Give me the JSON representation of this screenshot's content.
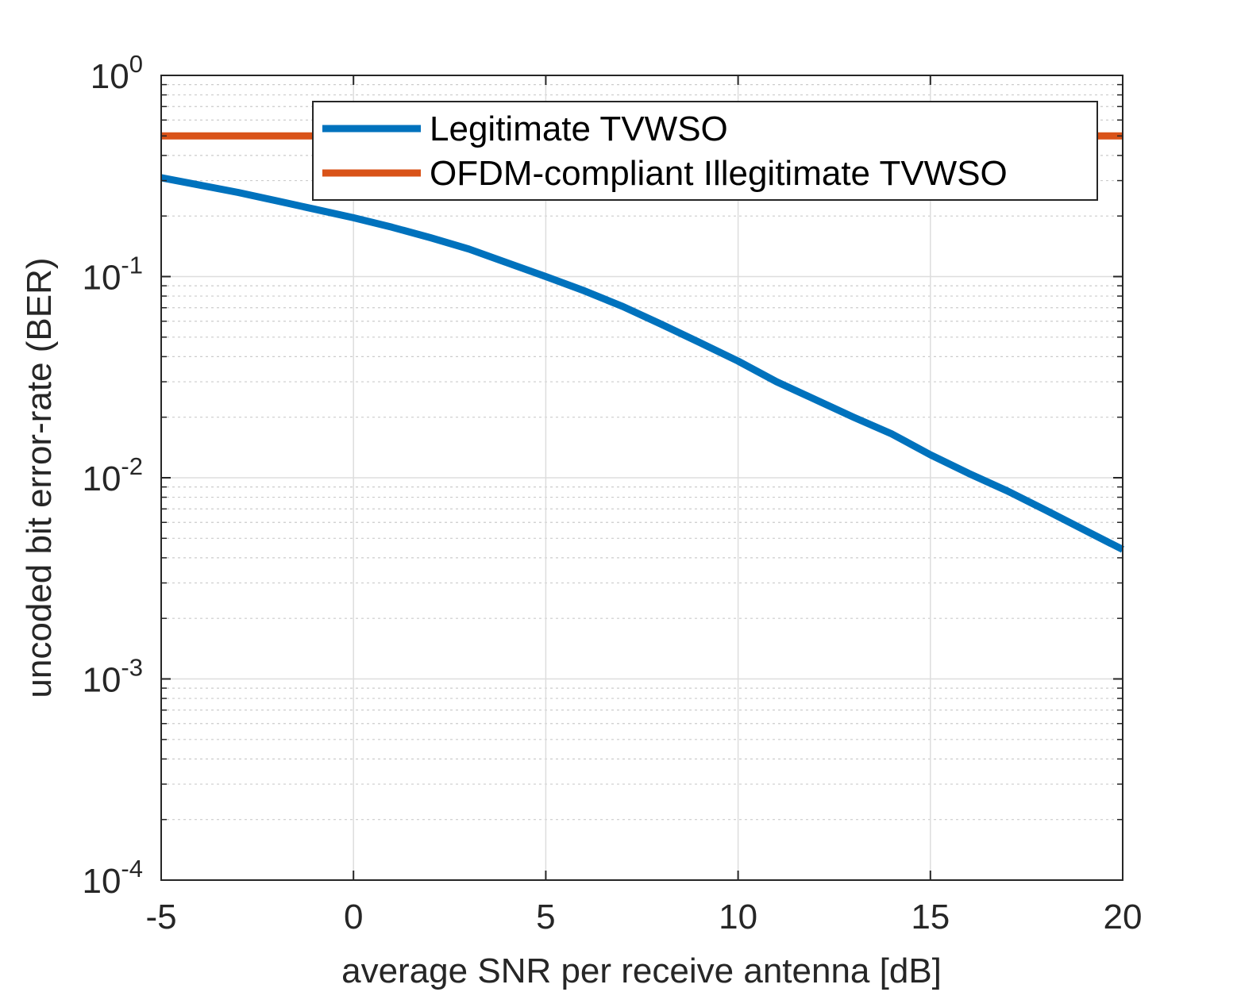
{
  "chart_data": {
    "type": "line",
    "title": "",
    "xlabel": "average SNR per receive antenna [dB]",
    "ylabel": "uncoded bit error-rate (BER)",
    "xlim": [
      -5,
      20
    ],
    "ylim": [
      0.0001,
      1
    ],
    "yscale": "log",
    "grid": true,
    "legend_position": "top-right",
    "x_ticks": [
      -5,
      0,
      5,
      10,
      15,
      20
    ],
    "x_tick_labels": [
      "-5",
      "0",
      "5",
      "10",
      "15",
      "20"
    ],
    "y_ticks": [
      0,
      -1,
      -2,
      -3,
      -4
    ],
    "y_tick_base": "10",
    "y_tick_exponents": [
      "0",
      "-1",
      "-2",
      "-3",
      "-4"
    ],
    "series": [
      {
        "name": "Legitimate TVWSO",
        "color": "#0072BD",
        "x": [
          -5,
          -4,
          -3,
          -2,
          -1,
          0,
          1,
          2,
          3,
          4,
          5,
          6,
          7,
          8,
          9,
          10,
          11,
          12,
          13,
          14,
          15,
          16,
          17,
          18,
          19,
          20
        ],
        "y": [
          0.31,
          0.285,
          0.262,
          0.238,
          0.216,
          0.196,
          0.176,
          0.156,
          0.137,
          0.117,
          0.1,
          0.085,
          0.071,
          0.058,
          0.047,
          0.038,
          0.03,
          0.0245,
          0.02,
          0.0165,
          0.013,
          0.0105,
          0.0086,
          0.0069,
          0.0055,
          0.0044
        ]
      },
      {
        "name": "OFDM-compliant Illegitimate TVWSO",
        "color": "#D95319",
        "x": [
          -5,
          0,
          5,
          10,
          15,
          20
        ],
        "y": [
          0.5,
          0.5,
          0.5,
          0.5,
          0.5,
          0.5
        ]
      }
    ]
  }
}
